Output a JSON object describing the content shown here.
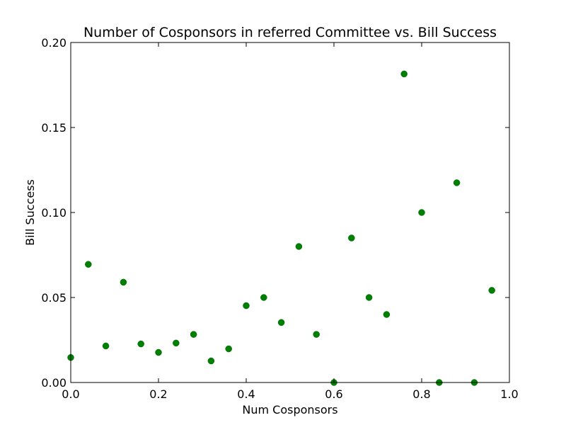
{
  "chart_data": {
    "type": "scatter",
    "title": "Number of Cosponsors in referred Committee vs. Bill Success",
    "xlabel": "Num Cosponsors",
    "ylabel": "Bill Success",
    "xlim": [
      0.0,
      1.0
    ],
    "ylim": [
      0.0,
      0.2
    ],
    "xticks": [
      "0.0",
      "0.2",
      "0.4",
      "0.6",
      "0.8",
      "1.0"
    ],
    "yticks": [
      "0.00",
      "0.05",
      "0.10",
      "0.15",
      "0.20"
    ],
    "grid": false,
    "marker_color": "#008000",
    "x": [
      0.0,
      0.04,
      0.08,
      0.12,
      0.16,
      0.2,
      0.24,
      0.28,
      0.32,
      0.36,
      0.4,
      0.44,
      0.48,
      0.52,
      0.56,
      0.6,
      0.64,
      0.68,
      0.72,
      0.76,
      0.8,
      0.84,
      0.88,
      0.92,
      0.96
    ],
    "y": [
      0.0147,
      0.0695,
      0.0215,
      0.059,
      0.0227,
      0.0177,
      0.0232,
      0.0283,
      0.0127,
      0.0198,
      0.0452,
      0.05,
      0.0353,
      0.08,
      0.0283,
      0.0,
      0.085,
      0.05,
      0.04,
      0.1815,
      0.1,
      0.0,
      0.1175,
      0.0,
      0.0542
    ]
  }
}
